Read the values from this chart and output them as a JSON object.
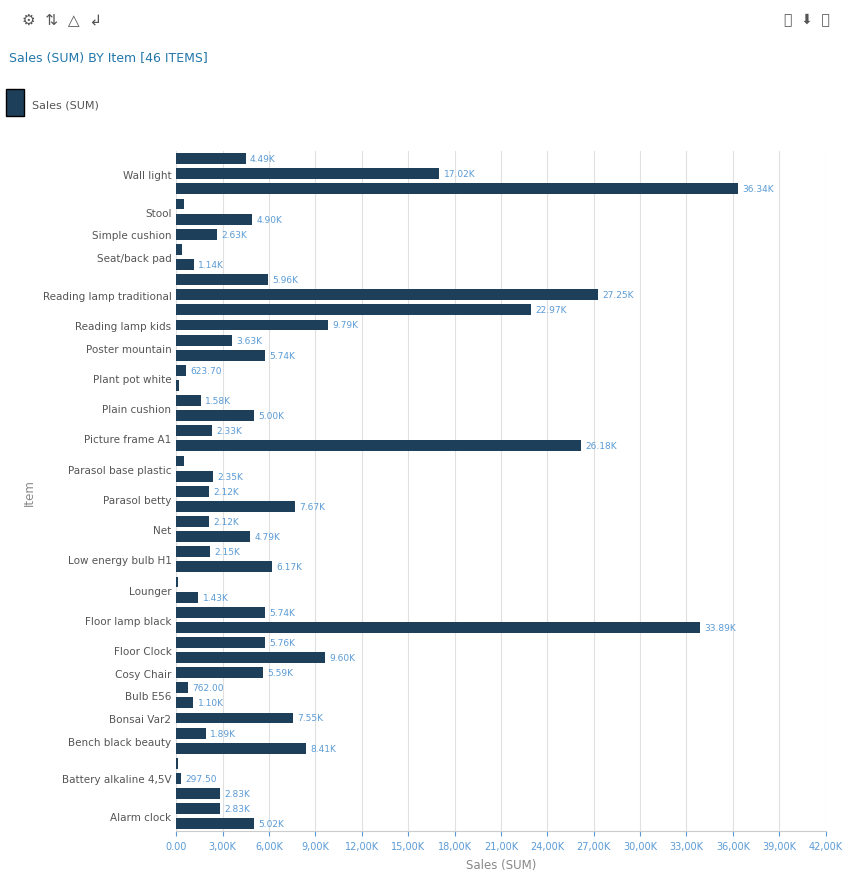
{
  "title": "Sales (SUM) BY Item [46 ITEMS]",
  "header_title": "Sales (SUM) BY Item [46 ITEMS]",
  "xlabel": "Sales (SUM)",
  "ylabel": "Item",
  "legend_label": "Sales (SUM)",
  "bar_color": "#1e3f5a",
  "label_color": "#5b9bd5",
  "axis_label_color": "#888888",
  "ytick_color": "#555555",
  "xtick_color": "#5b9bd5",
  "background_color": "#ffffff",
  "grid_color": "#e0e0e0",
  "header_bg": "#f5f5f5",
  "header_title_color": "#2277aa",
  "xlim": [
    0,
    42000
  ],
  "xticks": [
    0,
    3000,
    6000,
    9000,
    12000,
    15000,
    18000,
    21000,
    24000,
    27000,
    30000,
    33000,
    36000,
    39000,
    42000
  ],
  "groups": [
    {
      "name": "Wall light",
      "bars": [
        4490,
        17020,
        36340
      ],
      "labels": [
        "4.49K",
        "17.02K",
        "36.34K"
      ]
    },
    {
      "name": "Stool",
      "bars": [
        500,
        4900
      ],
      "labels": [
        null,
        "4.90K"
      ]
    },
    {
      "name": "Simple cushion",
      "bars": [
        2630
      ],
      "labels": [
        "2.63K"
      ]
    },
    {
      "name": "Seat/back pad",
      "bars": [
        350,
        1140
      ],
      "labels": [
        null,
        "1.14K"
      ]
    },
    {
      "name": "Reading lamp traditional",
      "bars": [
        5960,
        27250,
        22970
      ],
      "labels": [
        "5.96K",
        "27.25K",
        "22.97K"
      ]
    },
    {
      "name": "Reading lamp kids",
      "bars": [
        9790
      ],
      "labels": [
        "9.79K"
      ]
    },
    {
      "name": "Poster mountain",
      "bars": [
        3630,
        5740
      ],
      "labels": [
        "3.63K",
        "5.74K"
      ]
    },
    {
      "name": "Plant pot white",
      "bars": [
        623.7,
        150
      ],
      "labels": [
        "623.70",
        null
      ]
    },
    {
      "name": "Plain cushion",
      "bars": [
        1580,
        5000
      ],
      "labels": [
        "1.58K",
        "5.00K"
      ]
    },
    {
      "name": "Picture frame A1",
      "bars": [
        2330,
        26180
      ],
      "labels": [
        "2.33K",
        "26.18K"
      ]
    },
    {
      "name": "Parasol base plastic",
      "bars": [
        500,
        2350
      ],
      "labels": [
        null,
        "2.35K"
      ]
    },
    {
      "name": "Parasol betty",
      "bars": [
        2120,
        7670
      ],
      "labels": [
        "2.12K",
        "7.67K"
      ]
    },
    {
      "name": "Net",
      "bars": [
        2120,
        4790
      ],
      "labels": [
        "2.12K",
        "4.79K"
      ]
    },
    {
      "name": "Low energy bulb H1",
      "bars": [
        2150,
        6170
      ],
      "labels": [
        "2.15K",
        "6.17K"
      ]
    },
    {
      "name": "Lounger",
      "bars": [
        100,
        1430
      ],
      "labels": [
        null,
        "1.43K"
      ]
    },
    {
      "name": "Floor lamp black",
      "bars": [
        5740,
        33890
      ],
      "labels": [
        "5.74K",
        "33.89K"
      ]
    },
    {
      "name": "Floor Clock",
      "bars": [
        5760,
        9600
      ],
      "labels": [
        "5.76K",
        "9.60K"
      ]
    },
    {
      "name": "Cosy Chair",
      "bars": [
        5590
      ],
      "labels": [
        "5.59K"
      ]
    },
    {
      "name": "Bulb E56",
      "bars": [
        762,
        1100
      ],
      "labels": [
        "762.00",
        "1.10K"
      ]
    },
    {
      "name": "Bonsai Var2",
      "bars": [
        7550
      ],
      "labels": [
        "7.55K"
      ]
    },
    {
      "name": "Bench black beauty",
      "bars": [
        1890,
        8410
      ],
      "labels": [
        "1.89K",
        "8.41K"
      ]
    },
    {
      "name": "Battery alkaline 4,5V",
      "bars": [
        100,
        297.5,
        2830
      ],
      "labels": [
        null,
        "297.50",
        "2.83K"
      ]
    },
    {
      "name": "Alarm clock",
      "bars": [
        2830,
        5020
      ],
      "labels": [
        "2.83K",
        "5.02K"
      ]
    }
  ]
}
